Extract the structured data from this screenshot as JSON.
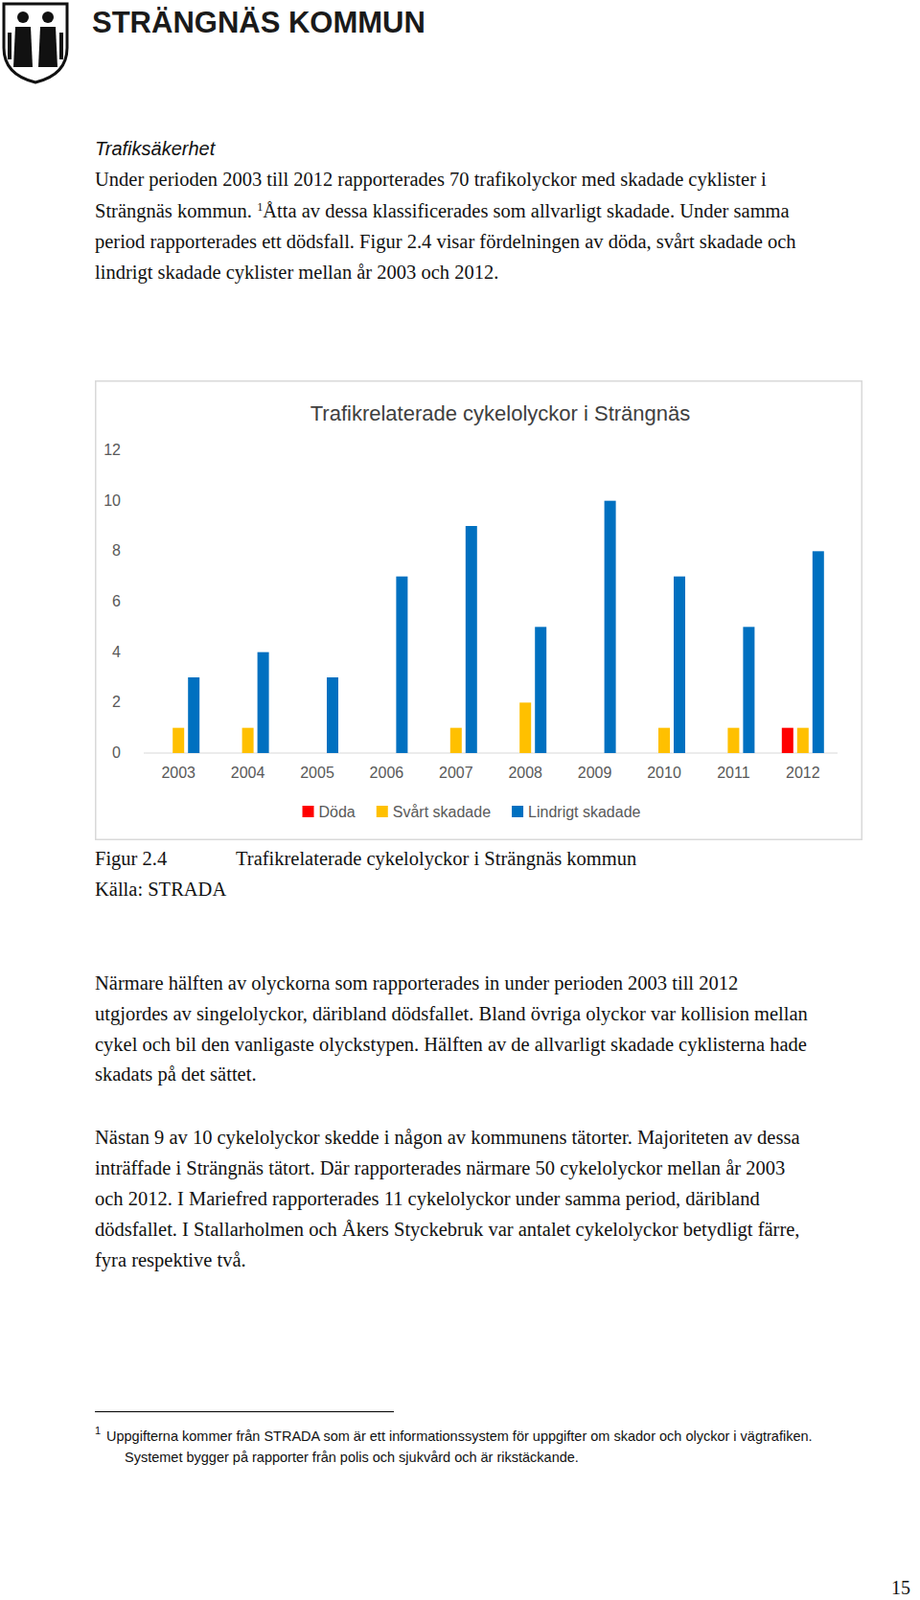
{
  "header": {
    "title": "STRÄNGNÄS KOMMUN"
  },
  "heading": "Trafiksäkerhet",
  "intro": {
    "lines": [
      [
        "Under perioden 2003 till 2012 rapporterades 70 trafikolyckor med skadade cyklister i"
      ],
      [
        "Strängnäs kommun. ",
        {
          "sup": "1"
        },
        "Åtta av dessa klassificerades som allvarligt skadade. Under samma"
      ],
      [
        "period rapporterades ett dödsfall. Figur 2.4 visar fördelningen av döda, svårt skadade och"
      ],
      [
        "lindrigt skadade cyklister mellan år 2003 och 2012."
      ]
    ]
  },
  "chart_data": {
    "type": "bar",
    "title": "Trafikrelaterade cykelolyckor i Strängnäs",
    "categories": [
      "2003",
      "2004",
      "2005",
      "2006",
      "2007",
      "2008",
      "2009",
      "2010",
      "2011",
      "2012"
    ],
    "series": [
      {
        "name": "Döda",
        "color": "#ff0000",
        "values": [
          0,
          0,
          0,
          0,
          0,
          0,
          0,
          0,
          0,
          1
        ]
      },
      {
        "name": "Svårt skadade",
        "color": "#ffc000",
        "values": [
          1,
          1,
          0,
          0,
          1,
          2,
          0,
          1,
          1,
          1
        ]
      },
      {
        "name": "Lindrigt skadade",
        "color": "#0070c0",
        "values": [
          3,
          4,
          3,
          7,
          9,
          5,
          10,
          7,
          5,
          8
        ]
      }
    ],
    "ylim": [
      0,
      12
    ],
    "yticks": [
      0,
      2,
      4,
      6,
      8,
      10,
      12
    ],
    "grid": false,
    "legend": "bottom"
  },
  "caption": {
    "label": "Figur 2.4",
    "text": "Trafikrelaterade cykelolyckor i Strängnäs kommun",
    "source": "Källa: STRADA"
  },
  "body": {
    "paragraphs": [
      {
        "lines": [
          [
            "Närmare hälften av olyckorna som rapporterades in under perioden 2003 till 2012"
          ],
          [
            "utgjordes av singelolyckor, däribland dödsfallet. Bland övriga olyckor var kollision mellan"
          ],
          [
            "cykel och bil den vanligaste olyckstypen. Hälften av de allvarligt skadade cyklisterna hade"
          ],
          [
            "skadats på det sättet."
          ]
        ]
      },
      {
        "lines": [
          [
            "Nästan 9 av 10 cykelolyckor skedde i någon av kommunens tätorter. Majoriteten av dessa"
          ],
          [
            "inträffade i Strängnäs tätort. Där rapporterades närmare 50 cykelolyckor mellan år 2003"
          ],
          [
            "och 2012. I Mariefred rapporterades 11 cykelolyckor under samma period, däribland"
          ],
          [
            "dödsfallet. I Stallarholmen och Åkers Styckebruk var antalet cykelolyckor betydligt färre,"
          ],
          [
            "fyra respektive två."
          ]
        ]
      }
    ]
  },
  "footnote": {
    "number": "1",
    "lines": [
      "Uppgifterna kommer från STRADA som är ett informationssystem för uppgifter om skador och olyckor i vägtrafiken.",
      "Systemet bygger på rapporter från polis och sjukvård och är rikstäckande."
    ]
  },
  "page_number": "15"
}
